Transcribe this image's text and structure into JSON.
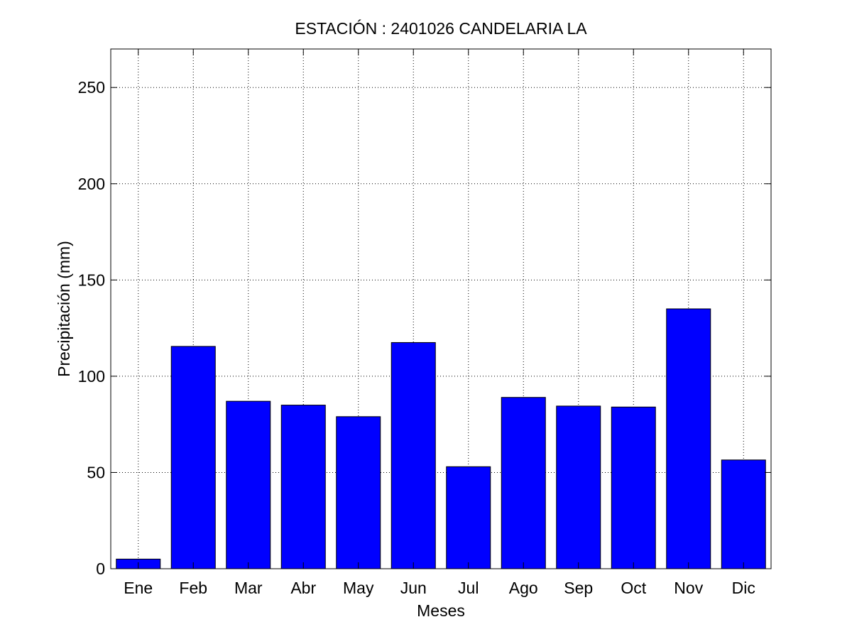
{
  "chart_data": {
    "type": "bar",
    "title": "ESTACIÓN :  2401026  CANDELARIA LA",
    "xlabel": "Meses",
    "ylabel": "Precipitación (mm)",
    "categories": [
      "Ene",
      "Feb",
      "Mar",
      "Abr",
      "May",
      "Jun",
      "Jul",
      "Ago",
      "Sep",
      "Oct",
      "Nov",
      "Dic"
    ],
    "values": [
      5,
      115.5,
      87,
      85,
      79,
      117.5,
      53,
      89,
      84.5,
      84,
      135,
      56.5
    ],
    "ylim": [
      0,
      270
    ],
    "yticks": [
      0,
      50,
      100,
      150,
      200,
      250
    ],
    "ytick_labels": [
      "0",
      "50",
      "100",
      "150",
      "200",
      "250"
    ],
    "grid": true,
    "bar_color": "#0000ff",
    "edge_color": "#000000"
  }
}
